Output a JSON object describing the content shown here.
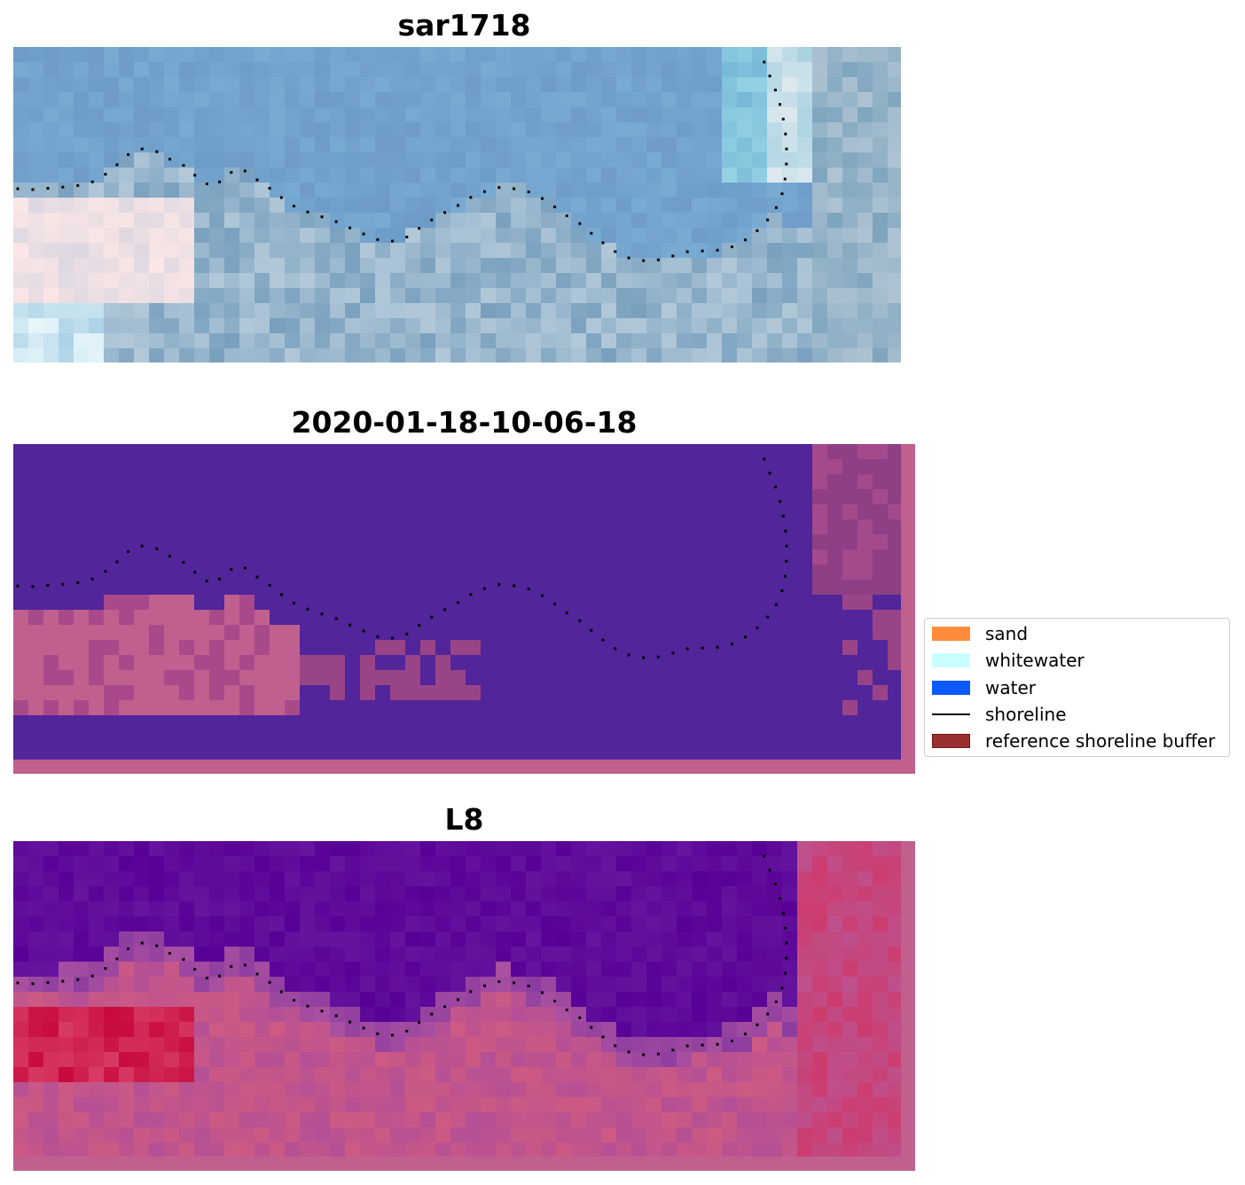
{
  "panels": [
    {
      "title": "sar1718",
      "style": "rgb"
    },
    {
      "title": "2020-01-18-10-06-18",
      "style": "classified"
    },
    {
      "title": "L8",
      "style": "index"
    }
  ],
  "legend": {
    "items": [
      {
        "label": "sand",
        "color": "#ff8c3a",
        "kind": "swatch",
        "icon": "sand-swatch"
      },
      {
        "label": "whitewater",
        "color": "#c8ffff",
        "kind": "swatch",
        "icon": "whitewater-swatch"
      },
      {
        "label": "water",
        "color": "#0a5aff",
        "kind": "swatch",
        "icon": "water-swatch"
      },
      {
        "label": "shoreline",
        "color": "#000000",
        "kind": "line",
        "icon": "shoreline-line"
      },
      {
        "label": "reference shoreline buffer",
        "color": "#9b2f2f",
        "kind": "swatch",
        "icon": "buffer-swatch"
      }
    ]
  },
  "colors": {
    "classified_water": "#52259a",
    "classified_buffer": "#c0608f",
    "index_deep": "#560096",
    "index_mid": "#b44f9e",
    "index_hot": "#c8002a"
  }
}
